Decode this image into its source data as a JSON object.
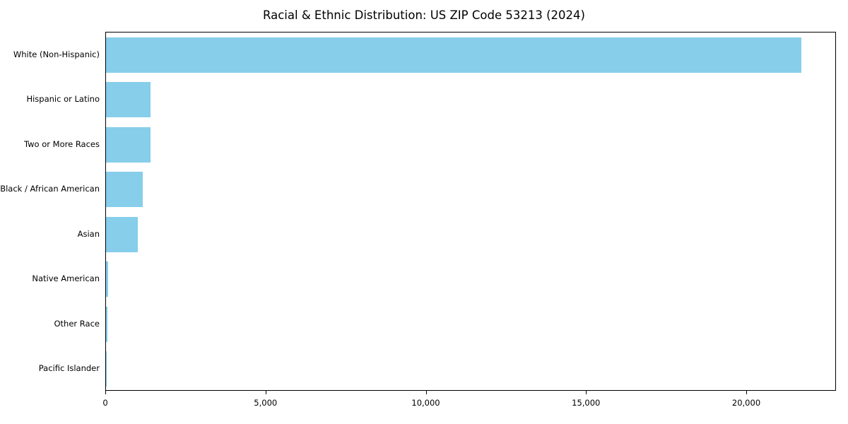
{
  "title": "Racial & Ethnic Distribution: US ZIP Code 53213 (2024)",
  "colors": {
    "bar": "#87CEEB",
    "axis": "#000000",
    "background": "#FFFFFF"
  },
  "chart_data": {
    "type": "bar",
    "orientation": "horizontal",
    "title": "Racial & Ethnic Distribution: US ZIP Code 53213 (2024)",
    "categories": [
      "White (Non-Hispanic)",
      "Hispanic or Latino",
      "Two or More Races",
      "Black / African American",
      "Asian",
      "Native American",
      "Other Race",
      "Pacific Islander"
    ],
    "values": [
      21700,
      1400,
      1380,
      1150,
      1000,
      70,
      40,
      10
    ],
    "xlabel": "",
    "ylabel": "",
    "xlim": [
      0,
      22800
    ],
    "xticks": [
      0,
      5000,
      10000,
      15000,
      20000
    ],
    "xtick_labels": [
      "0",
      "5,000",
      "10,000",
      "15,000",
      "20,000"
    ],
    "grid": false,
    "legend": false,
    "bar_color": "#87CEEB"
  }
}
